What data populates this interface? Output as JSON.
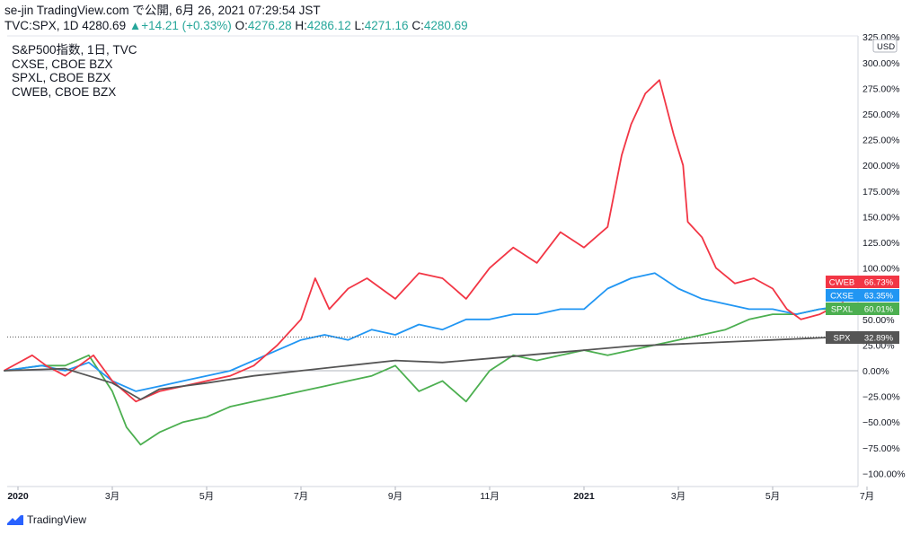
{
  "header": {
    "line1": "se-jin TradingView.com で公開, 6月 26, 2021 07:29:54 JST",
    "symbol": "TVC:SPX, 1D 4280.69",
    "change_arrow": "▲",
    "change": "+14.21 (+0.33%)",
    "o_label": "O:",
    "o_value": "4276.28",
    "h_label": "H:",
    "h_value": "4286.12",
    "l_label": "L:",
    "l_value": "4271.16",
    "c_label": "C:",
    "c_value": "4280.69"
  },
  "legend": [
    "S&P500指数, 1日, TVC",
    "CXSE, CBOE BZX",
    "SPXL, CBOE BZX",
    "CWEB, CBOE BZX"
  ],
  "footer": {
    "brand": "TradingView"
  },
  "chart_data": {
    "type": "line",
    "y_unit": "%",
    "y_ticks": [
      "325.00%",
      "300.00%",
      "275.00%",
      "250.00%",
      "225.00%",
      "200.00%",
      "175.00%",
      "150.00%",
      "125.00%",
      "100.00%",
      "75.00%",
      "50.00%",
      "25.00%",
      "0.00%",
      "−25.00%",
      "−50.00%",
      "−75.00%",
      "−100.00%"
    ],
    "y_tick_values": [
      325,
      300,
      275,
      250,
      225,
      200,
      175,
      150,
      125,
      100,
      75,
      50,
      25,
      0,
      -25,
      -50,
      -75,
      -100
    ],
    "currency_label": "USD",
    "x_ticks": [
      {
        "label": "2020",
        "t": 0,
        "bold": true
      },
      {
        "label": "3月",
        "t": 2
      },
      {
        "label": "5月",
        "t": 4
      },
      {
        "label": "7月",
        "t": 6
      },
      {
        "label": "9月",
        "t": 8
      },
      {
        "label": "11月",
        "t": 10
      },
      {
        "label": "2021",
        "t": 12,
        "bold": true
      },
      {
        "label": "3月",
        "t": 14
      },
      {
        "label": "5月",
        "t": 16
      },
      {
        "label": "7月",
        "t": 18
      }
    ],
    "series": [
      {
        "name": "CWEB",
        "color": "#f23645",
        "last_label": "66.73%",
        "points": [
          [
            -0.3,
            0
          ],
          [
            0.3,
            15
          ],
          [
            0.6,
            5
          ],
          [
            1,
            -5
          ],
          [
            1.6,
            15
          ],
          [
            2,
            -10
          ],
          [
            2.5,
            -30
          ],
          [
            3,
            -20
          ],
          [
            3.5,
            -15
          ],
          [
            4,
            -10
          ],
          [
            4.5,
            -5
          ],
          [
            5,
            5
          ],
          [
            5.5,
            25
          ],
          [
            6,
            50
          ],
          [
            6.3,
            90
          ],
          [
            6.6,
            60
          ],
          [
            7,
            80
          ],
          [
            7.4,
            90
          ],
          [
            8,
            70
          ],
          [
            8.5,
            95
          ],
          [
            9,
            90
          ],
          [
            9.5,
            70
          ],
          [
            10,
            100
          ],
          [
            10.5,
            120
          ],
          [
            11,
            105
          ],
          [
            11.5,
            135
          ],
          [
            12,
            120
          ],
          [
            12.5,
            140
          ],
          [
            12.8,
            210
          ],
          [
            13,
            240
          ],
          [
            13.3,
            270
          ],
          [
            13.6,
            283
          ],
          [
            13.9,
            230
          ],
          [
            14.1,
            200
          ],
          [
            14.2,
            145
          ],
          [
            14.5,
            130
          ],
          [
            14.8,
            100
          ],
          [
            15.2,
            85
          ],
          [
            15.6,
            90
          ],
          [
            16,
            80
          ],
          [
            16.3,
            60
          ],
          [
            16.6,
            50
          ],
          [
            17,
            55
          ],
          [
            17.5,
            66.73
          ]
        ]
      },
      {
        "name": "CXSE",
        "color": "#2196f3",
        "last_label": "63.35%",
        "points": [
          [
            -0.3,
            0
          ],
          [
            0.5,
            5
          ],
          [
            1,
            0
          ],
          [
            1.5,
            8
          ],
          [
            2,
            -10
          ],
          [
            2.5,
            -20
          ],
          [
            3,
            -15
          ],
          [
            3.5,
            -10
          ],
          [
            4,
            -5
          ],
          [
            4.5,
            0
          ],
          [
            5,
            10
          ],
          [
            5.5,
            20
          ],
          [
            6,
            30
          ],
          [
            6.5,
            35
          ],
          [
            7,
            30
          ],
          [
            7.5,
            40
          ],
          [
            8,
            35
          ],
          [
            8.5,
            45
          ],
          [
            9,
            40
          ],
          [
            9.5,
            50
          ],
          [
            10,
            50
          ],
          [
            10.5,
            55
          ],
          [
            11,
            55
          ],
          [
            11.5,
            60
          ],
          [
            12,
            60
          ],
          [
            12.5,
            80
          ],
          [
            13,
            90
          ],
          [
            13.5,
            95
          ],
          [
            14,
            80
          ],
          [
            14.5,
            70
          ],
          [
            15,
            65
          ],
          [
            15.5,
            60
          ],
          [
            16,
            60
          ],
          [
            16.5,
            55
          ],
          [
            17,
            60
          ],
          [
            17.5,
            63.35
          ]
        ]
      },
      {
        "name": "SPXL",
        "color": "#4caf50",
        "last_label": "60.01%",
        "points": [
          [
            -0.3,
            0
          ],
          [
            0.5,
            5
          ],
          [
            1,
            5
          ],
          [
            1.5,
            15
          ],
          [
            2,
            -20
          ],
          [
            2.3,
            -55
          ],
          [
            2.6,
            -72
          ],
          [
            3,
            -60
          ],
          [
            3.5,
            -50
          ],
          [
            4,
            -45
          ],
          [
            4.5,
            -35
          ],
          [
            5,
            -30
          ],
          [
            5.5,
            -25
          ],
          [
            6,
            -20
          ],
          [
            6.5,
            -15
          ],
          [
            7,
            -10
          ],
          [
            7.5,
            -5
          ],
          [
            8,
            5
          ],
          [
            8.5,
            -20
          ],
          [
            9,
            -10
          ],
          [
            9.5,
            -30
          ],
          [
            10,
            0
          ],
          [
            10.5,
            15
          ],
          [
            11,
            10
          ],
          [
            11.5,
            15
          ],
          [
            12,
            20
          ],
          [
            12.5,
            15
          ],
          [
            13,
            20
          ],
          [
            13.5,
            25
          ],
          [
            14,
            30
          ],
          [
            14.5,
            35
          ],
          [
            15,
            40
          ],
          [
            15.5,
            50
          ],
          [
            16,
            55
          ],
          [
            16.5,
            55
          ],
          [
            17,
            60
          ],
          [
            17.5,
            60.01
          ]
        ]
      },
      {
        "name": "SPX",
        "color": "#555555",
        "last_label": "32.89%",
        "points": [
          [
            -0.3,
            0
          ],
          [
            1,
            2
          ],
          [
            2,
            -12
          ],
          [
            2.6,
            -28
          ],
          [
            3,
            -18
          ],
          [
            4,
            -12
          ],
          [
            5,
            -5
          ],
          [
            6,
            0
          ],
          [
            7,
            5
          ],
          [
            8,
            10
          ],
          [
            9,
            8
          ],
          [
            10,
            12
          ],
          [
            11,
            16
          ],
          [
            12,
            20
          ],
          [
            13,
            24
          ],
          [
            14,
            26
          ],
          [
            15,
            28
          ],
          [
            16,
            30
          ],
          [
            17,
            32
          ],
          [
            17.5,
            32.89
          ]
        ]
      }
    ]
  }
}
